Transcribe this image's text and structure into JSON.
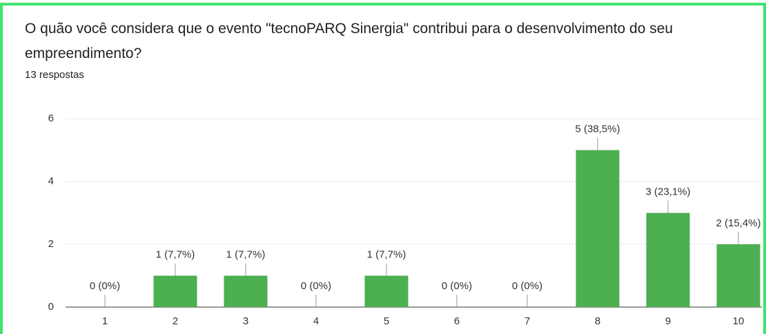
{
  "chart_data": {
    "type": "bar",
    "title": "O quão você considera que o evento \"tecnoPARQ Sinergia\" contribui para o desenvolvimento do seu empreendimento?",
    "subtitle": "13 respostas",
    "categories": [
      "1",
      "2",
      "3",
      "4",
      "5",
      "6",
      "7",
      "8",
      "9",
      "10"
    ],
    "values": [
      0,
      1,
      1,
      0,
      1,
      0,
      0,
      5,
      3,
      2
    ],
    "value_labels": [
      "0 (0%)",
      "1 (7,7%)",
      "1 (7,7%)",
      "0 (0%)",
      "1 (7,7%)",
      "0 (0%)",
      "0 (0%)",
      "5 (38,5%)",
      "3 (23,1%)",
      "2 (15,4%)"
    ],
    "color": "#4caf50",
    "ylim": [
      0,
      6
    ],
    "yticks": [
      0,
      2,
      4,
      6
    ],
    "grid": true
  }
}
